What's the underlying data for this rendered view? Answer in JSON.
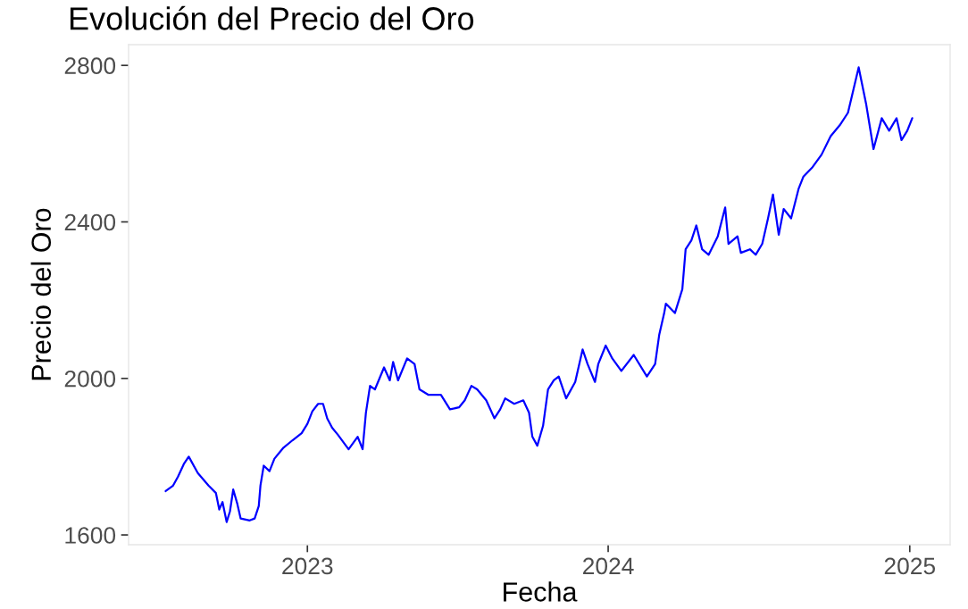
{
  "chart_data": {
    "type": "line",
    "title": "Evolución del Precio del Oro",
    "xlabel": "Fecha",
    "ylabel": "Precio del Oro",
    "x": [
      "2022-07-13",
      "2022-07-22",
      "2022-07-28",
      "2022-08-04",
      "2022-08-10",
      "2022-08-21",
      "2022-09-03",
      "2022-09-12",
      "2022-09-16",
      "2022-09-20",
      "2022-09-25",
      "2022-09-29",
      "2022-10-03",
      "2022-10-08",
      "2022-10-12",
      "2022-10-23",
      "2022-10-29",
      "2022-11-03",
      "2022-11-05",
      "2022-11-09",
      "2022-11-16",
      "2022-11-22",
      "2022-12-03",
      "2022-12-14",
      "2022-12-25",
      "2023-01-01",
      "2023-01-07",
      "2023-01-14",
      "2023-01-20",
      "2023-01-25",
      "2023-01-31",
      "2023-02-07",
      "2023-02-20",
      "2023-03-03",
      "2023-03-09",
      "2023-03-13",
      "2023-03-18",
      "2023-03-24",
      "2023-04-04",
      "2023-04-11",
      "2023-04-15",
      "2023-04-21",
      "2023-05-02",
      "2023-05-11",
      "2023-05-17",
      "2023-05-28",
      "2023-06-12",
      "2023-06-23",
      "2023-07-04",
      "2023-07-11",
      "2023-07-19",
      "2023-07-26",
      "2023-08-06",
      "2023-08-16",
      "2023-08-23",
      "2023-08-29",
      "2023-09-09",
      "2023-09-20",
      "2023-09-27",
      "2023-10-01",
      "2023-10-07",
      "2023-10-14",
      "2023-10-20",
      "2023-10-27",
      "2023-11-02",
      "2023-11-11",
      "2023-11-22",
      "2023-12-01",
      "2023-12-07",
      "2023-12-16",
      "2023-12-20",
      "2023-12-29",
      "2024-01-06",
      "2024-01-17",
      "2024-02-01",
      "2024-02-17",
      "2024-02-27",
      "2024-03-03",
      "2024-03-09",
      "2024-03-11",
      "2024-03-22",
      "2024-03-31",
      "2024-04-04",
      "2024-04-11",
      "2024-04-17",
      "2024-04-24",
      "2024-05-02",
      "2024-05-13",
      "2024-05-22",
      "2024-05-26",
      "2024-06-06",
      "2024-06-10",
      "2024-06-21",
      "2024-06-28",
      "2024-07-06",
      "2024-07-13",
      "2024-07-19",
      "2024-07-26",
      "2024-08-01",
      "2024-08-10",
      "2024-08-19",
      "2024-08-25",
      "2024-09-05",
      "2024-09-16",
      "2024-09-27",
      "2024-10-08",
      "2024-10-18",
      "2024-10-31",
      "2024-11-09",
      "2024-11-18",
      "2024-11-28",
      "2024-12-07",
      "2024-12-16",
      "2024-12-22",
      "2024-12-29",
      "2025-01-04"
    ],
    "series": [
      {
        "color": "#0000ff",
        "values": [
          1712,
          1726,
          1749,
          1781,
          1800,
          1758,
          1726,
          1707,
          1665,
          1684,
          1633,
          1660,
          1716,
          1679,
          1642,
          1637,
          1642,
          1674,
          1726,
          1777,
          1763,
          1795,
          1823,
          1842,
          1860,
          1884,
          1916,
          1935,
          1935,
          1898,
          1874,
          1856,
          1819,
          1851,
          1819,
          1912,
          1981,
          1972,
          2028,
          1995,
          2042,
          1995,
          2051,
          2037,
          1972,
          1958,
          1958,
          1921,
          1926,
          1944,
          1981,
          1972,
          1944,
          1898,
          1921,
          1949,
          1935,
          1944,
          1912,
          1851,
          1828,
          1879,
          1972,
          1995,
          2005,
          1949,
          1991,
          2074,
          2037,
          1991,
          2037,
          2084,
          2051,
          2019,
          2060,
          2005,
          2037,
          2112,
          2167,
          2191,
          2167,
          2228,
          2330,
          2353,
          2391,
          2330,
          2316,
          2363,
          2437,
          2344,
          2363,
          2321,
          2330,
          2316,
          2344,
          2409,
          2470,
          2367,
          2433,
          2409,
          2484,
          2516,
          2540,
          2572,
          2619,
          2647,
          2679,
          2795,
          2702,
          2586,
          2665,
          2633,
          2665,
          2609,
          2633,
          2665
        ]
      }
    ],
    "xlim": [
      "2022-05-29",
      "2025-02-19"
    ],
    "xticks": [
      {
        "value": "2023-01-01",
        "label": "2023"
      },
      {
        "value": "2024-01-01",
        "label": "2024"
      },
      {
        "value": "2025-01-01",
        "label": "2025"
      }
    ],
    "ylim": [
      1575,
      2853
    ],
    "yticks": [
      1600,
      2000,
      2400,
      2800
    ],
    "grid": false,
    "line_style": "solid",
    "marker": "none"
  }
}
